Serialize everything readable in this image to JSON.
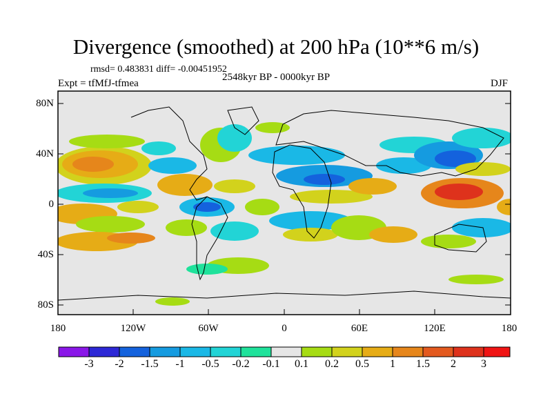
{
  "header": {
    "title": "Divergence (smoothed) at 200 hPa (10**6 m/s)",
    "stats": "rmsd= 0.483831 diff= -0.00451952",
    "period": "2548kyr BP - 0000kyr BP",
    "experiment": "Expt = tfMfJ-tfmea",
    "season": "DJF"
  },
  "axes": {
    "y_ticks": [
      "80N",
      "40N",
      "0",
      "40S",
      "80S"
    ],
    "x_ticks": [
      "180",
      "120W",
      "60W",
      "0",
      "60E",
      "120E",
      "180"
    ]
  },
  "colorbar": {
    "labels": [
      "-3",
      "-2",
      "-1.5",
      "-1",
      "-0.5",
      "-0.2",
      "-0.1",
      "0.1",
      "0.2",
      "0.5",
      "1",
      "1.5",
      "2",
      "3"
    ],
    "colors": [
      "#8a17e8",
      "#2d28d6",
      "#1462dd",
      "#159be0",
      "#1ab8e6",
      "#22d4d6",
      "#1fe29b",
      "#e6e6e6",
      "#a6dc14",
      "#d2d21c",
      "#e6ac16",
      "#e6861b",
      "#e35a1f",
      "#de321c",
      "#f01414"
    ]
  }
}
